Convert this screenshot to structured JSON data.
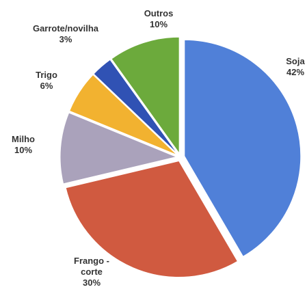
{
  "chart_data": {
    "type": "pie",
    "categories": [
      "Soja",
      "Frango - corte",
      "Milho",
      "Trigo",
      "Garrote/novilha",
      "Outros"
    ],
    "values": [
      42,
      30,
      10,
      6,
      3,
      10
    ],
    "value_labels": [
      "42%",
      "30%",
      "10%",
      "6%",
      "3%",
      "10%"
    ],
    "colors": [
      "#5080d8",
      "#d05a40",
      "#aaa2bb",
      "#f2b230",
      "#3052b4",
      "#6caa3c"
    ]
  }
}
